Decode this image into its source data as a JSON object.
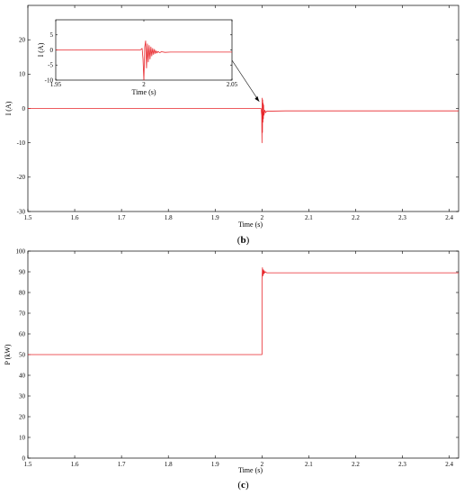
{
  "colors": {
    "series": "#e8262b",
    "axes": "#000000",
    "background": "#ffffff"
  },
  "chart_data": [
    {
      "id": "b",
      "type": "line",
      "panel_label": "(b)",
      "xlabel": "Time (s)",
      "ylabel": "I (A)",
      "xlim": [
        1.5,
        2.42
      ],
      "ylim": [
        -30,
        30
      ],
      "xticks": [
        1.5,
        1.6,
        1.7,
        1.8,
        1.9,
        2,
        2.1,
        2.2,
        2.3,
        2.4
      ],
      "xtick_labels": [
        "1.5",
        "1.6",
        "1.7",
        "1.8",
        "1.9",
        "2",
        "2.1",
        "2.2",
        "2.3",
        "2.4"
      ],
      "yticks": [
        -30,
        -20,
        -10,
        0,
        10,
        20
      ],
      "ytick_labels": [
        "-30",
        "-20",
        "-10",
        "0",
        "10",
        "20"
      ],
      "grid": false,
      "series": [
        {
          "x": [
            1.5,
            1.998,
            1.9995,
            2.0,
            2.0005,
            2.001,
            2.0015,
            2.002,
            2.0025,
            2.003,
            2.0035,
            2.004,
            2.005,
            2.006,
            2.008,
            2.01,
            2.05,
            2.2,
            2.33,
            2.42
          ],
          "y": [
            0,
            0,
            -2,
            -10,
            3,
            -7,
            2.5,
            -4,
            1.5,
            -3,
            1,
            -2,
            -1.5,
            -0.5,
            -1.2,
            -0.8,
            -0.7,
            -0.7,
            -0.7,
            -0.7
          ]
        }
      ],
      "inset": {
        "xlabel": "Time (s)",
        "ylabel": "I (A)",
        "xlim": [
          1.95,
          2.05
        ],
        "ylim": [
          -10,
          10
        ],
        "xticks": [
          1.95,
          2,
          2.05
        ],
        "xtick_labels": [
          "1.95",
          "2",
          "2.05"
        ],
        "yticks": [
          -10,
          -5,
          0,
          5
        ],
        "ytick_labels": [
          "-10",
          "-5",
          "0",
          "5"
        ],
        "series": [
          {
            "x": [
              1.95,
              1.998,
              1.999,
              1.9995,
              2.0,
              2.0005,
              2.001,
              2.0015,
              2.002,
              2.0025,
              2.003,
              2.0035,
              2.004,
              2.0045,
              2.005,
              2.0055,
              2.006,
              2.0065,
              2.007,
              2.0075,
              2.008,
              2.009,
              2.01,
              2.012,
              2.015,
              2.05
            ],
            "y": [
              0,
              0,
              0.5,
              -3,
              -10,
              1,
              3,
              -6,
              2,
              -4,
              1.5,
              -3,
              1,
              -2,
              0.5,
              -1.5,
              0.2,
              -1.2,
              -0.3,
              -1,
              -0.5,
              -0.9,
              -0.6,
              -0.8,
              -0.7,
              -0.7
            ]
          }
        ]
      }
    },
    {
      "id": "c",
      "type": "line",
      "panel_label": "(c)",
      "xlabel": "Time (s)",
      "ylabel": "P (kW)",
      "xlim": [
        1.5,
        2.42
      ],
      "ylim": [
        0,
        100
      ],
      "xticks": [
        1.5,
        1.6,
        1.7,
        1.8,
        1.9,
        2,
        2.1,
        2.2,
        2.3,
        2.4
      ],
      "xtick_labels": [
        "1.5",
        "1.6",
        "1.7",
        "1.8",
        "1.9",
        "2",
        "2.1",
        "2.2",
        "2.3",
        "2.4"
      ],
      "yticks": [
        0,
        10,
        20,
        30,
        40,
        50,
        60,
        70,
        80,
        90,
        100
      ],
      "ytick_labels": [
        "0",
        "10",
        "20",
        "30",
        "40",
        "50",
        "60",
        "70",
        "80",
        "90",
        "100"
      ],
      "grid": false,
      "series": [
        {
          "x": [
            1.5,
            2.0,
            2.0,
            2.001,
            2.002,
            2.003,
            2.004,
            2.005,
            2.006,
            2.008,
            2.01,
            2.05,
            2.33,
            2.42
          ],
          "y": [
            50,
            50,
            86,
            92,
            88,
            91,
            89,
            90.5,
            89.5,
            90,
            89.5,
            89.5,
            89.5,
            89.5
          ]
        }
      ]
    }
  ]
}
